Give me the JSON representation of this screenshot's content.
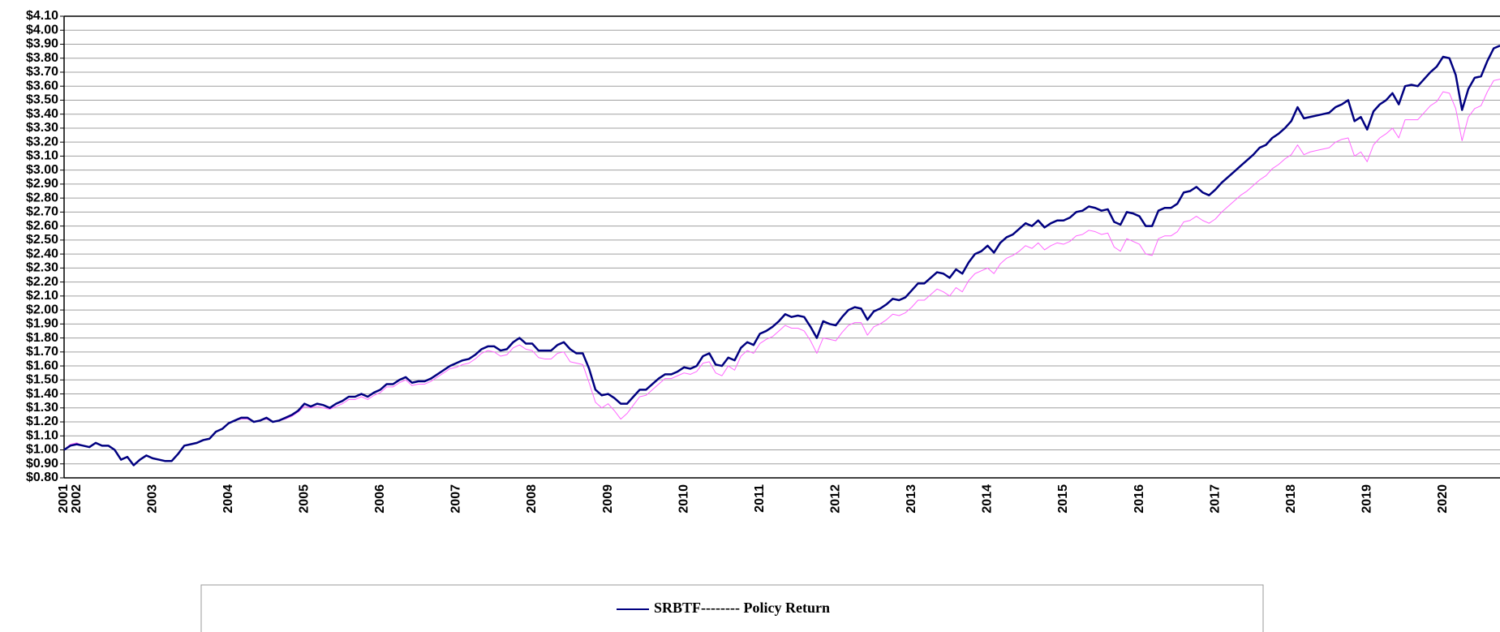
{
  "chart_data": {
    "type": "line",
    "categories": [
      "2001",
      null,
      "2002",
      null,
      null,
      null,
      null,
      null,
      null,
      null,
      null,
      null,
      null,
      null,
      "2003",
      null,
      null,
      null,
      null,
      null,
      null,
      null,
      null,
      null,
      null,
      null,
      "2004",
      null,
      null,
      null,
      null,
      null,
      null,
      null,
      null,
      null,
      null,
      null,
      "2005",
      null,
      null,
      null,
      null,
      null,
      null,
      null,
      null,
      null,
      null,
      null,
      "2006",
      null,
      null,
      null,
      null,
      null,
      null,
      null,
      null,
      null,
      null,
      null,
      "2007",
      null,
      null,
      null,
      null,
      null,
      null,
      null,
      null,
      null,
      null,
      null,
      "2008",
      null,
      null,
      null,
      null,
      null,
      null,
      null,
      null,
      null,
      null,
      null,
      "2009",
      null,
      null,
      null,
      null,
      null,
      null,
      null,
      null,
      null,
      null,
      null,
      "2010",
      null,
      null,
      null,
      null,
      null,
      null,
      null,
      null,
      null,
      null,
      null,
      "2011",
      null,
      null,
      null,
      null,
      null,
      null,
      null,
      null,
      null,
      null,
      null,
      "2012",
      null,
      null,
      null,
      null,
      null,
      null,
      null,
      null,
      null,
      null,
      null,
      "2013",
      null,
      null,
      null,
      null,
      null,
      null,
      null,
      null,
      null,
      null,
      null,
      "2014",
      null,
      null,
      null,
      null,
      null,
      null,
      null,
      null,
      null,
      null,
      null,
      "2015",
      null,
      null,
      null,
      null,
      null,
      null,
      null,
      null,
      null,
      null,
      null,
      "2016",
      null,
      null,
      null,
      null,
      null,
      null,
      null,
      null,
      null,
      null,
      null,
      "2017",
      null,
      null,
      null,
      null,
      null,
      null,
      null,
      null,
      null,
      null,
      null,
      "2018",
      null,
      null,
      null,
      null,
      null,
      null,
      null,
      null,
      null,
      null,
      null,
      "2019",
      null,
      null,
      null,
      null,
      null,
      null,
      null,
      null,
      null,
      null,
      null,
      "2020",
      null,
      null,
      null,
      null,
      null,
      null,
      null,
      null,
      null
    ],
    "series": [
      {
        "name": "SRBTF-------- Policy Return",
        "color": "#000080",
        "values": [
          1.0,
          1.03,
          1.04,
          1.03,
          1.02,
          1.05,
          1.03,
          1.03,
          1.0,
          0.93,
          0.95,
          0.89,
          0.93,
          0.96,
          0.94,
          0.93,
          0.92,
          0.92,
          0.97,
          1.03,
          1.04,
          1.05,
          1.07,
          1.08,
          1.13,
          1.15,
          1.19,
          1.21,
          1.23,
          1.23,
          1.2,
          1.21,
          1.23,
          1.2,
          1.21,
          1.23,
          1.25,
          1.28,
          1.33,
          1.31,
          1.33,
          1.32,
          1.3,
          1.33,
          1.35,
          1.38,
          1.38,
          1.4,
          1.38,
          1.41,
          1.43,
          1.47,
          1.47,
          1.5,
          1.52,
          1.48,
          1.49,
          1.49,
          1.51,
          1.54,
          1.57,
          1.6,
          1.62,
          1.64,
          1.65,
          1.68,
          1.72,
          1.74,
          1.74,
          1.71,
          1.72,
          1.77,
          1.8,
          1.76,
          1.76,
          1.71,
          1.71,
          1.71,
          1.75,
          1.77,
          1.72,
          1.69,
          1.69,
          1.58,
          1.43,
          1.39,
          1.4,
          1.37,
          1.33,
          1.33,
          1.38,
          1.43,
          1.43,
          1.47,
          1.51,
          1.54,
          1.54,
          1.56,
          1.59,
          1.58,
          1.6,
          1.67,
          1.69,
          1.61,
          1.6,
          1.66,
          1.64,
          1.73,
          1.77,
          1.75,
          1.83,
          1.85,
          1.88,
          1.92,
          1.97,
          1.95,
          1.96,
          1.95,
          1.88,
          1.8,
          1.92,
          1.9,
          1.89,
          1.95,
          2.0,
          2.02,
          2.01,
          1.93,
          1.99,
          2.01,
          2.04,
          2.08,
          2.07,
          2.09,
          2.14,
          2.19,
          2.19,
          2.23,
          2.27,
          2.26,
          2.23,
          2.29,
          2.26,
          2.34,
          2.4,
          2.42,
          2.46,
          2.41,
          2.48,
          2.52,
          2.54,
          2.58,
          2.62,
          2.6,
          2.64,
          2.59,
          2.62,
          2.64,
          2.64,
          2.66,
          2.7,
          2.71,
          2.74,
          2.73,
          2.71,
          2.72,
          2.63,
          2.61,
          2.7,
          2.69,
          2.67,
          2.6,
          2.6,
          2.71,
          2.73,
          2.73,
          2.76,
          2.84,
          2.85,
          2.88,
          2.84,
          2.82,
          2.86,
          2.91,
          2.95,
          2.99,
          3.03,
          3.07,
          3.11,
          3.16,
          3.18,
          3.23,
          3.26,
          3.3,
          3.35,
          3.45,
          3.37,
          3.38,
          3.39,
          3.4,
          3.41,
          3.45,
          3.47,
          3.5,
          3.35,
          3.38,
          3.29,
          3.42,
          3.47,
          3.5,
          3.55,
          3.47,
          3.6,
          3.61,
          3.6,
          3.65,
          3.7,
          3.74,
          3.81,
          3.8,
          3.68,
          3.43,
          3.58,
          3.66,
          3.67,
          3.78,
          3.87,
          3.89
        ]
      },
      {
        "color": "#ff66ff",
        "values": [
          1.0,
          1.04,
          1.05,
          1.03,
          1.02,
          1.05,
          1.03,
          1.03,
          1.0,
          0.93,
          0.95,
          0.89,
          0.93,
          0.96,
          0.94,
          0.93,
          0.92,
          0.92,
          0.97,
          1.03,
          1.04,
          1.05,
          1.07,
          1.08,
          1.13,
          1.15,
          1.19,
          1.21,
          1.22,
          1.22,
          1.2,
          1.21,
          1.22,
          1.2,
          1.21,
          1.22,
          1.24,
          1.27,
          1.31,
          1.3,
          1.31,
          1.3,
          1.29,
          1.31,
          1.33,
          1.36,
          1.36,
          1.38,
          1.36,
          1.39,
          1.41,
          1.45,
          1.45,
          1.48,
          1.5,
          1.46,
          1.47,
          1.47,
          1.49,
          1.52,
          1.55,
          1.58,
          1.59,
          1.61,
          1.62,
          1.65,
          1.69,
          1.71,
          1.7,
          1.67,
          1.68,
          1.73,
          1.75,
          1.72,
          1.71,
          1.66,
          1.65,
          1.65,
          1.69,
          1.7,
          1.63,
          1.62,
          1.61,
          1.48,
          1.34,
          1.3,
          1.33,
          1.28,
          1.22,
          1.26,
          1.32,
          1.38,
          1.39,
          1.43,
          1.47,
          1.51,
          1.51,
          1.53,
          1.55,
          1.54,
          1.56,
          1.62,
          1.63,
          1.55,
          1.53,
          1.6,
          1.57,
          1.67,
          1.71,
          1.69,
          1.76,
          1.79,
          1.81,
          1.85,
          1.89,
          1.87,
          1.87,
          1.85,
          1.78,
          1.69,
          1.8,
          1.79,
          1.78,
          1.84,
          1.89,
          1.91,
          1.91,
          1.82,
          1.88,
          1.9,
          1.93,
          1.97,
          1.96,
          1.98,
          2.02,
          2.07,
          2.07,
          2.11,
          2.15,
          2.13,
          2.1,
          2.16,
          2.13,
          2.21,
          2.26,
          2.28,
          2.3,
          2.26,
          2.33,
          2.37,
          2.39,
          2.42,
          2.46,
          2.44,
          2.48,
          2.43,
          2.46,
          2.48,
          2.47,
          2.49,
          2.53,
          2.54,
          2.57,
          2.56,
          2.54,
          2.55,
          2.45,
          2.42,
          2.51,
          2.49,
          2.47,
          2.4,
          2.39,
          2.51,
          2.53,
          2.53,
          2.56,
          2.63,
          2.64,
          2.67,
          2.64,
          2.62,
          2.65,
          2.7,
          2.74,
          2.78,
          2.82,
          2.85,
          2.89,
          2.93,
          2.96,
          3.01,
          3.04,
          3.08,
          3.11,
          3.18,
          3.11,
          3.13,
          3.14,
          3.15,
          3.16,
          3.2,
          3.22,
          3.23,
          3.1,
          3.13,
          3.06,
          3.18,
          3.23,
          3.26,
          3.3,
          3.23,
          3.36,
          3.36,
          3.36,
          3.41,
          3.46,
          3.49,
          3.56,
          3.55,
          3.44,
          3.21,
          3.38,
          3.44,
          3.46,
          3.56,
          3.64,
          3.65
        ]
      }
    ],
    "ylim": [
      0.8,
      4.1
    ],
    "yticks": [
      {
        "value": 0.8,
        "label": "$0.80"
      },
      {
        "value": 0.9,
        "label": "$0.90"
      },
      {
        "value": 1.0,
        "label": "$1.00"
      },
      {
        "value": 1.1,
        "label": "$1.10"
      },
      {
        "value": 1.2,
        "label": "$1.20"
      },
      {
        "value": 1.3,
        "label": "$1.30"
      },
      {
        "value": 1.4,
        "label": "$1.40"
      },
      {
        "value": 1.5,
        "label": "$1.50"
      },
      {
        "value": 1.6,
        "label": "$1.60"
      },
      {
        "value": 1.7,
        "label": "$1.70"
      },
      {
        "value": 1.8,
        "label": "$1.80"
      },
      {
        "value": 1.9,
        "label": "$1.90"
      },
      {
        "value": 2.0,
        "label": "$2.00"
      },
      {
        "value": 2.1,
        "label": "$2.10"
      },
      {
        "value": 2.2,
        "label": "$2.20"
      },
      {
        "value": 2.3,
        "label": "$2.30"
      },
      {
        "value": 2.4,
        "label": "$2.40"
      },
      {
        "value": 2.5,
        "label": "$2.50"
      },
      {
        "value": 2.6,
        "label": "$2.60"
      },
      {
        "value": 2.7,
        "label": "$2.70"
      },
      {
        "value": 2.8,
        "label": "$2.80"
      },
      {
        "value": 2.9,
        "label": "$2.90"
      },
      {
        "value": 3.0,
        "label": "$3.00"
      },
      {
        "value": 3.1,
        "label": "$3.10"
      },
      {
        "value": 3.2,
        "label": "$3.20"
      },
      {
        "value": 3.3,
        "label": "$3.30"
      },
      {
        "value": 3.4,
        "label": "$3.40"
      },
      {
        "value": 3.5,
        "label": "$3.50"
      },
      {
        "value": 3.6,
        "label": "$3.60"
      },
      {
        "value": 3.7,
        "label": "$3.70"
      },
      {
        "value": 3.8,
        "label": "$3.80"
      },
      {
        "value": 3.9,
        "label": "$3.90"
      },
      {
        "value": 4.0,
        "label": "$4.00"
      },
      {
        "value": 4.1,
        "label": "$4.10"
      }
    ],
    "grid": true
  }
}
